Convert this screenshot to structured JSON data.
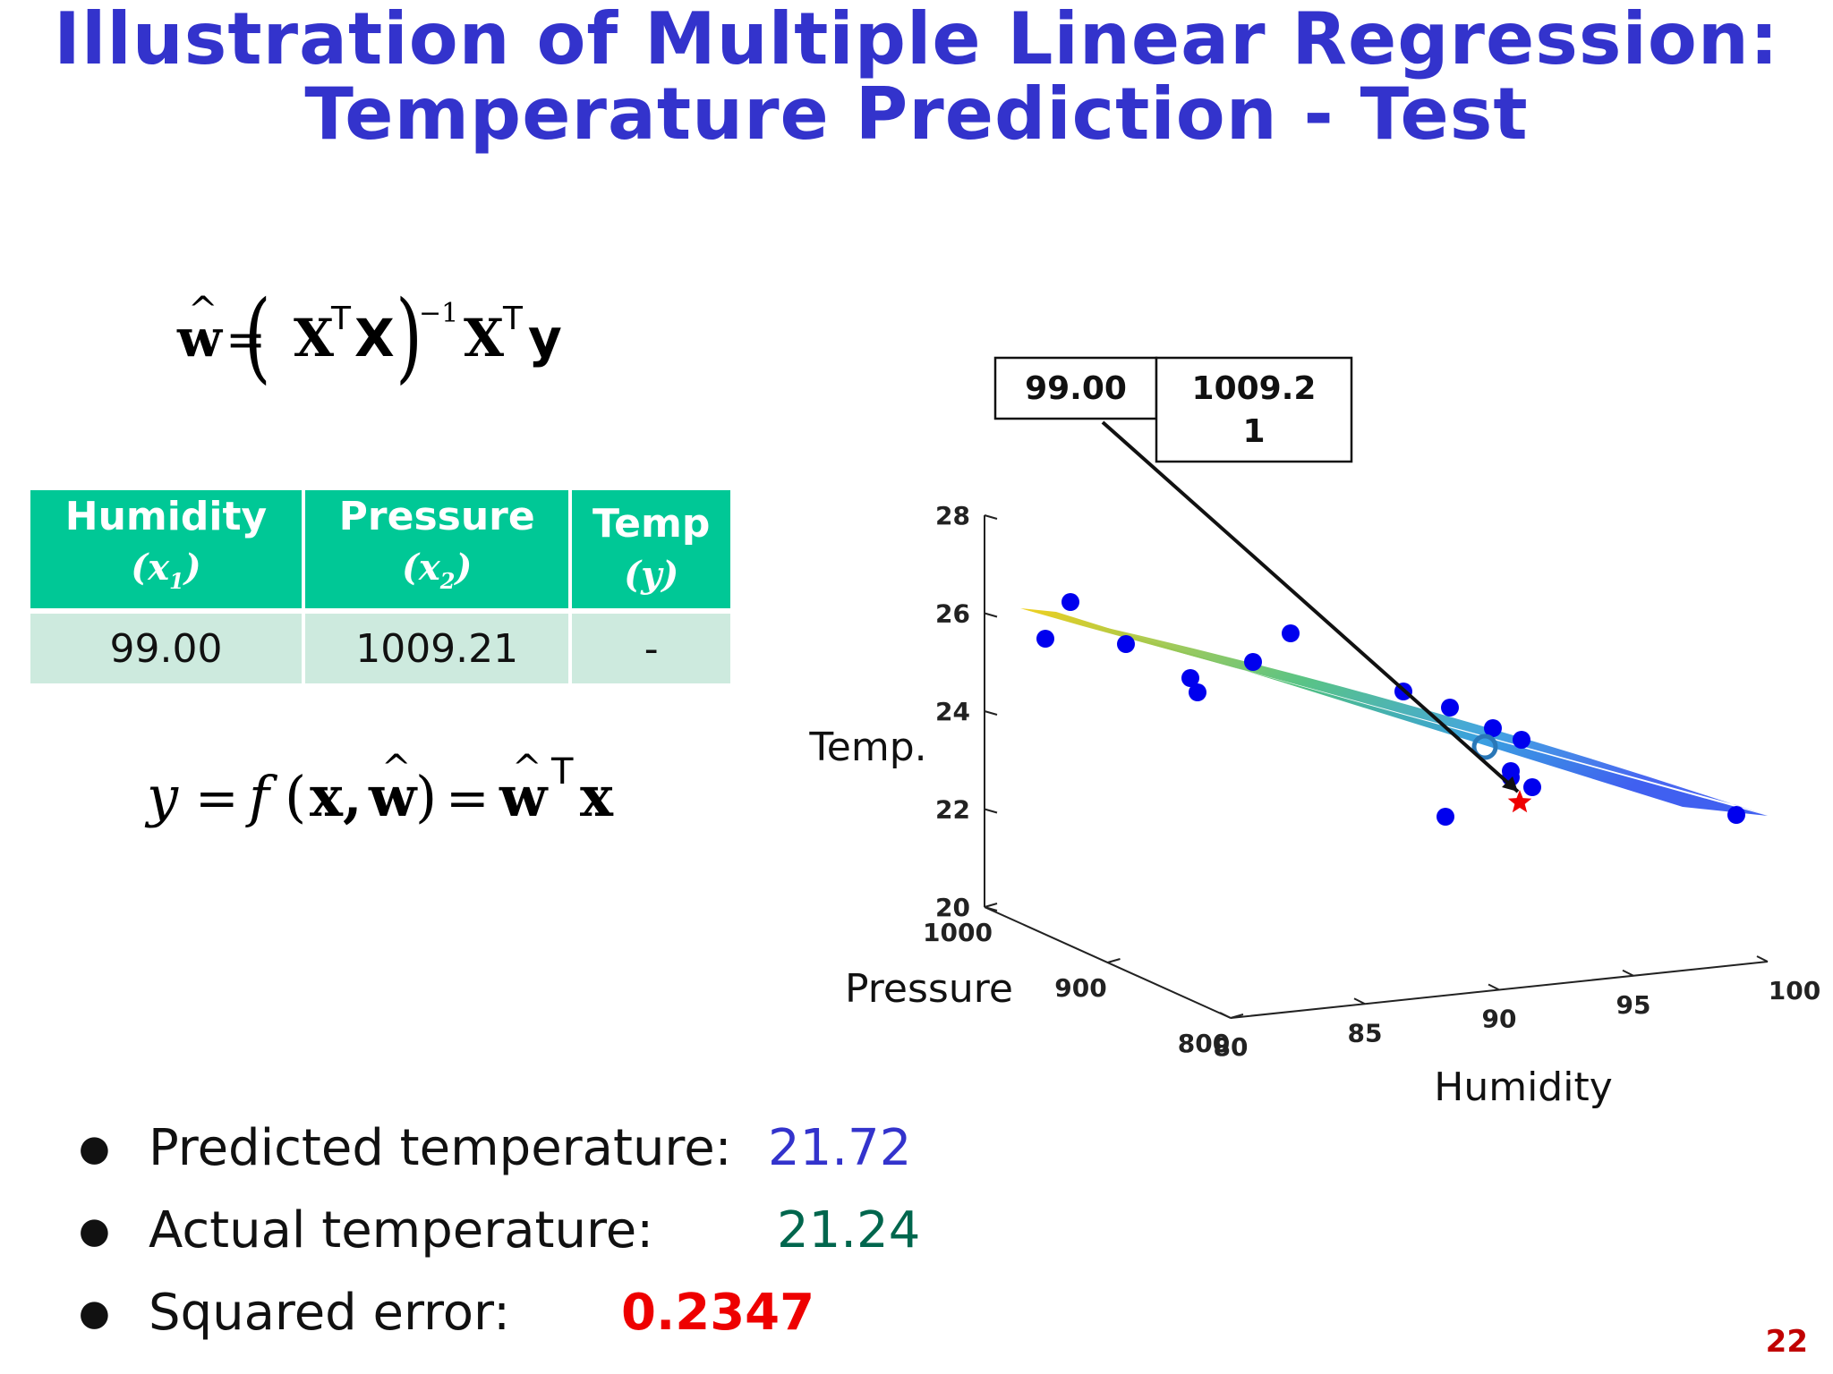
{
  "title": {
    "line1": "Illustration of Multiple Linear Regression:",
    "line2": "Temperature Prediction - Test"
  },
  "equations": {
    "normal_equation": "ŵ = (XᵀX)⁻¹ Xᵀy",
    "prediction": "y = f(x, ŵ) = ŵᵀx"
  },
  "table": {
    "headers": [
      {
        "label": "Humidity",
        "var": "(x",
        "sub": "1",
        "close": ")"
      },
      {
        "label": "Pressure",
        "var": "(x",
        "sub": "2",
        "close": ")"
      },
      {
        "label": "Temp",
        "var": "(y",
        "sub": "",
        "close": ")"
      }
    ],
    "row": [
      "99.00",
      "1009.21",
      "-"
    ]
  },
  "bullets": [
    {
      "label": "Predicted temperature:",
      "value": "21.72",
      "color": "#3333cc"
    },
    {
      "label": "Actual temperature:",
      "value": "21.24",
      "color": "#00664d"
    },
    {
      "label": "Squared error:",
      "value": "0.2347",
      "color": "#ee0000"
    }
  ],
  "page_number": "22",
  "chart_data": {
    "type": "scatter",
    "xlabel": "Humidity",
    "ylabel": "Pressure",
    "zlabel": "Temp.",
    "x_ticks": [
      "80",
      "85",
      "90",
      "95",
      "100"
    ],
    "y_ticks": [
      "800",
      "900",
      "1000"
    ],
    "z_ticks": [
      "20",
      "22",
      "24",
      "26",
      "28"
    ],
    "xlim": [
      80,
      100
    ],
    "ylim": [
      800,
      1000
    ],
    "zlim": [
      20,
      28
    ],
    "callout": {
      "x_label": "99.00",
      "y_label_line1": "1009.2",
      "y_label_line2": "1"
    },
    "points_color": "#0000ee",
    "surface_colors": [
      "#f0d020",
      "#50c080",
      "#3aa0e0",
      "#4060f0"
    ],
    "star_color": "#ee0000",
    "predicted_marker": "circle",
    "actual_marker": "star"
  }
}
